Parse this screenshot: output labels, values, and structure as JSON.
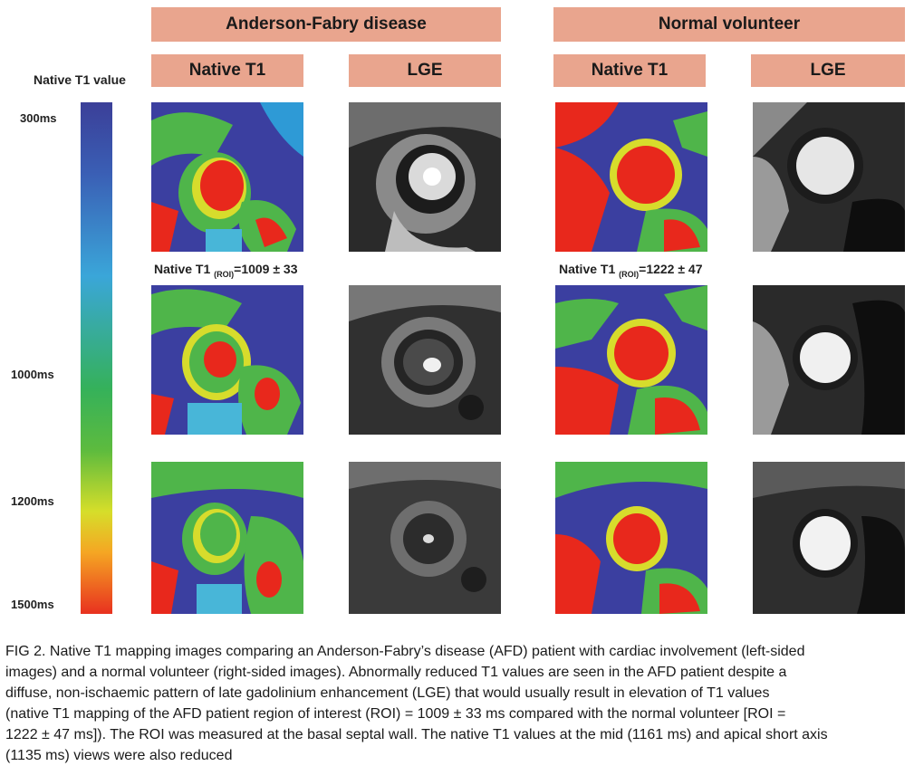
{
  "headers": {
    "group_afd": "Anderson-Fabry disease",
    "group_normal": "Normal volunteer",
    "col_native_t1": "Native T1",
    "col_lge": "LGE"
  },
  "scale": {
    "title": "Native T1 value",
    "ticks": [
      "300ms",
      "1000ms",
      "1200ms",
      "1500ms"
    ]
  },
  "roi": {
    "afd_prefix": "Native T1 ",
    "afd_sub": "(ROI)",
    "afd_value": "=1009 ± 33",
    "normal_prefix": "Native T1 ",
    "normal_sub": "(ROI)",
    "normal_value": "=1222 ± 47"
  },
  "caption": {
    "line1": "FIG 2.  Native T1 mapping images comparing an Anderson-Fabry’s disease (AFD) patient with cardiac involvement (left-sided",
    "line2": "images) and a normal volunteer (right-sided images). Abnormally reduced T1 values are seen in the AFD patient despite a",
    "line3": "diffuse, non-ischaemic pattern of late gadolinium enhancement (LGE) that would usually result in elevation of T1 values",
    "line4": "(native T1 mapping of the AFD patient region of interest (ROI) = 1009 ± 33 ms compared with the normal volunteer [ROI =",
    "line5": "1222 ± 47 ms]). The ROI was measured at the basal septal wall. The native T1 values at the mid (1161 ms) and apical short axis",
    "line6": "(1135 ms) views were also reduced"
  },
  "colors": {
    "header_bg": "#e9a58e",
    "map_blue": "#3b3fa0",
    "map_green": "#4fb54a",
    "map_red": "#e8281c",
    "map_yellow": "#e3dc2a"
  }
}
